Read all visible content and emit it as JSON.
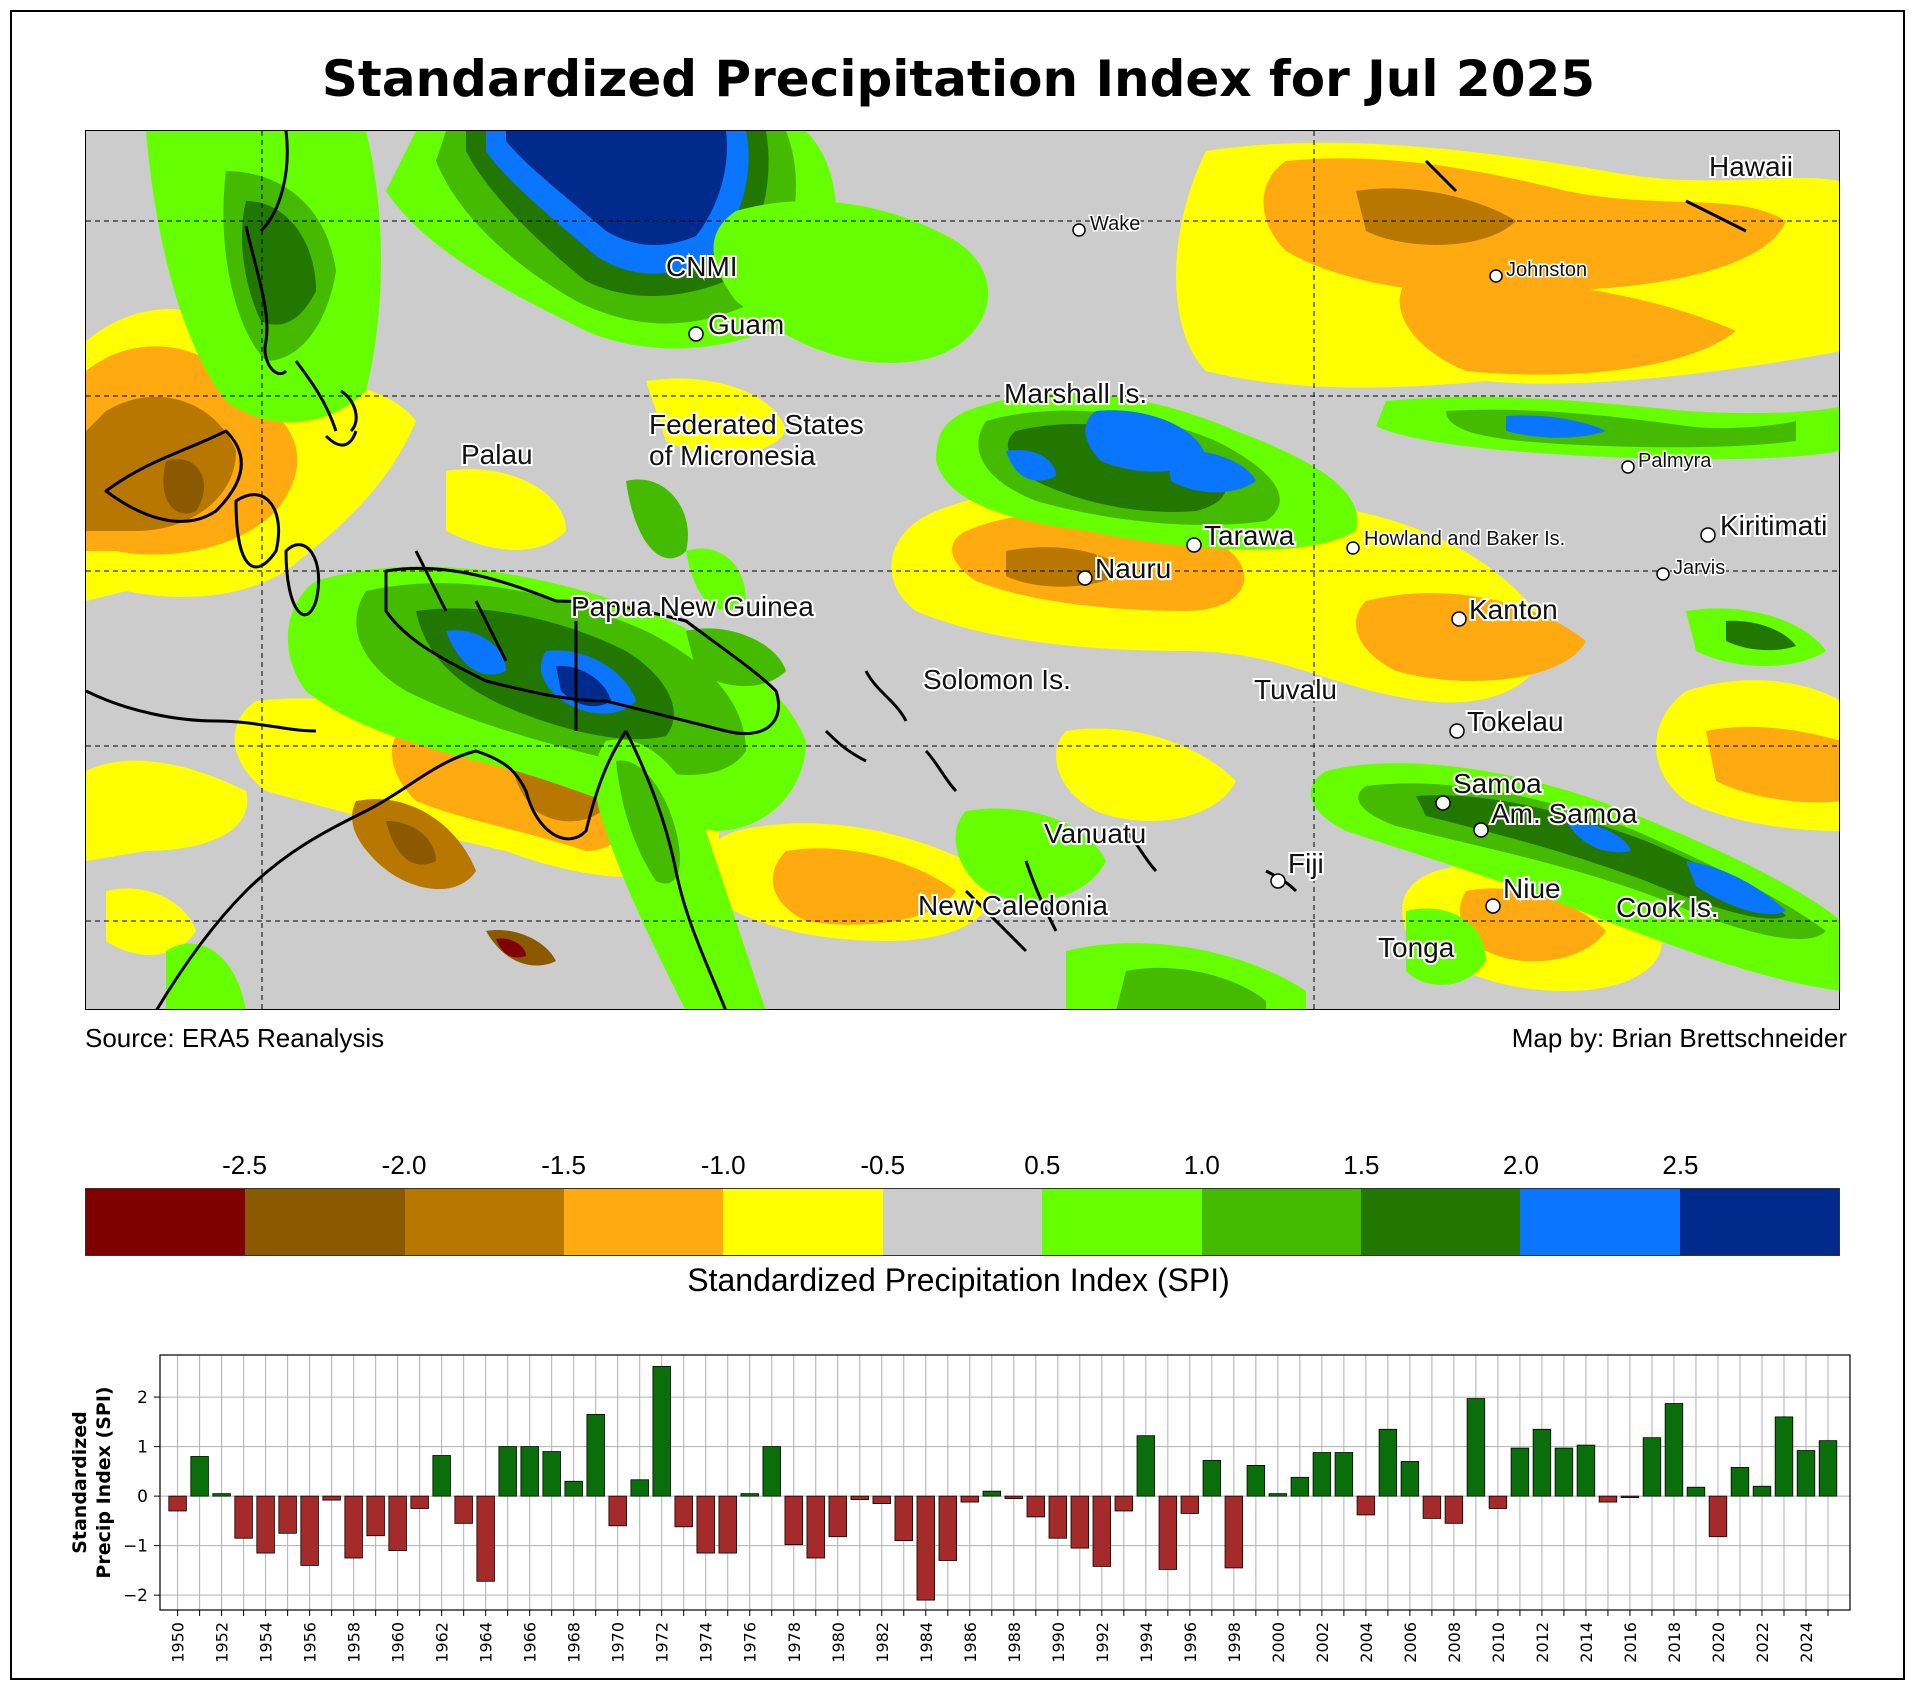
{
  "title": "Standardized Precipitation Index for Jul 2025",
  "source": "Source: ERA5 Reanalysis",
  "credit": "Map by: Brian Brettschneider",
  "map": {
    "places_large": [
      "CNMI",
      "Guam",
      "Hawaii",
      "Marshall Is.",
      "Palau",
      "Federated States",
      "of Micronesia",
      "Tarawa",
      "Nauru",
      "Kiritimati",
      "Kanton",
      "Papua New Guinea",
      "Solomon Is.",
      "Tuvalu",
      "Tokelau",
      "Samoa",
      "Am. Samoa",
      "Vanuatu",
      "Fiji",
      "Niue",
      "New Caledonia",
      "Cook Is.",
      "Tonga"
    ],
    "places_small": [
      "Wake",
      "Johnston",
      "Palmyra",
      "Howland and Baker Is.",
      "Jarvis"
    ]
  },
  "colorbar": {
    "label": "Standardized Precipitation Index (SPI)",
    "ticks": [
      "-2.5",
      "-2.0",
      "-1.5",
      "-1.0",
      "-0.5",
      "0.5",
      "1.0",
      "1.5",
      "2.0",
      "2.5"
    ],
    "colors": [
      "#800000",
      "#8b5a00",
      "#b87800",
      "#ffaa11",
      "#ffff00",
      "#cccccc",
      "#66ff00",
      "#44bb00",
      "#227700",
      "#0a75ff",
      "#002b8c"
    ]
  },
  "chart_data": {
    "type": "bar",
    "ylabel": "Standardized Precip Index (SPI)",
    "ylim": [
      -2.3,
      2.85
    ],
    "yticks": [
      -2,
      -1,
      0,
      1,
      2
    ],
    "pos_color": "#0a6e0a",
    "neg_color": "#a52a2a",
    "x": [
      1950,
      1951,
      1952,
      1953,
      1954,
      1955,
      1956,
      1957,
      1958,
      1959,
      1960,
      1961,
      1962,
      1963,
      1964,
      1965,
      1966,
      1967,
      1968,
      1969,
      1970,
      1971,
      1972,
      1973,
      1974,
      1975,
      1976,
      1977,
      1978,
      1979,
      1980,
      1981,
      1982,
      1983,
      1984,
      1985,
      1986,
      1987,
      1988,
      1989,
      1990,
      1991,
      1992,
      1993,
      1994,
      1995,
      1996,
      1997,
      1998,
      1999,
      2000,
      2001,
      2002,
      2003,
      2004,
      2005,
      2006,
      2007,
      2008,
      2009,
      2010,
      2011,
      2012,
      2013,
      2014,
      2015,
      2016,
      2017,
      2018,
      2019,
      2020,
      2021,
      2022,
      2023,
      2024,
      2025
    ],
    "values": [
      -0.3,
      0.8,
      0.05,
      -0.85,
      -1.15,
      -0.75,
      -1.4,
      -0.08,
      -1.25,
      -0.8,
      -1.1,
      -0.25,
      0.82,
      -0.55,
      -1.72,
      1.0,
      1.0,
      0.9,
      0.3,
      1.65,
      -0.6,
      0.33,
      2.62,
      -0.62,
      -1.15,
      -1.15,
      0.05,
      1.0,
      -0.98,
      -1.25,
      -0.82,
      -0.07,
      -0.15,
      -0.9,
      -2.1,
      -1.3,
      -0.12,
      0.1,
      -0.05,
      -0.42,
      -0.85,
      -1.05,
      -1.42,
      -0.3,
      1.22,
      -1.48,
      -0.35,
      0.72,
      -1.45,
      0.62,
      0.05,
      0.38,
      0.88,
      0.88,
      -0.38,
      1.35,
      0.7,
      -0.45,
      -0.55,
      1.97,
      -0.25,
      0.97,
      1.35,
      0.97,
      1.03,
      -0.12,
      -0.03,
      1.18,
      1.87,
      0.18,
      -0.82,
      0.58,
      0.2,
      1.6,
      0.92,
      1.12
    ]
  }
}
